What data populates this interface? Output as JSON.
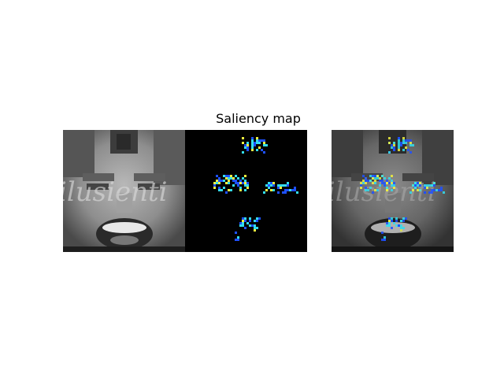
{
  "figure": {
    "title": "Saliency map"
  },
  "panels": [
    {
      "name": "original-face-image",
      "description": "Grayscale pixelated face with mouth open, watermark text overlay"
    },
    {
      "name": "saliency-heatmap",
      "description": "Black background with cyan/blue/yellow saliency blobs around eyebrows, eyes and mouth"
    },
    {
      "name": "overlay-image",
      "description": "Grayscale face with saliency heatmap overlaid"
    }
  ],
  "watermark_text": "ilusienti",
  "colors": {
    "background": "#ffffff",
    "saliency_bg": "#000000",
    "saliency_low": "#1e50ff",
    "saliency_mid": "#33ddee",
    "saliency_high": "#f0f040"
  }
}
